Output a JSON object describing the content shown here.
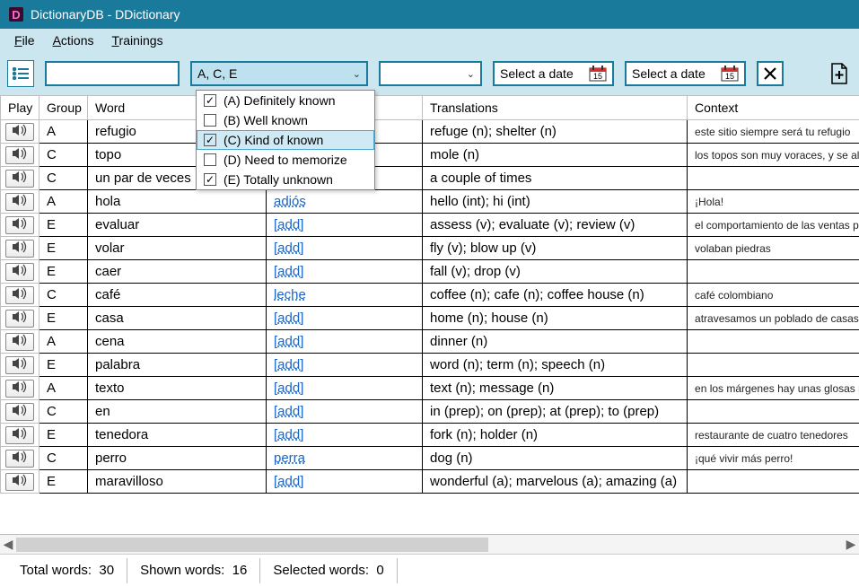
{
  "window": {
    "title": "DictionaryDB - DDictionary"
  },
  "menu": {
    "file": "File",
    "actions": "Actions",
    "trainings": "Trainings"
  },
  "toolbar": {
    "filter_value": "A, C, E",
    "date_placeholder": "Select a date"
  },
  "dropdown": {
    "items": [
      {
        "label": "(A) Definitely known",
        "checked": true,
        "hover": false
      },
      {
        "label": "(B) Well known",
        "checked": false,
        "hover": false
      },
      {
        "label": "(C) Kind of known",
        "checked": true,
        "hover": true
      },
      {
        "label": "(D) Need to memorize",
        "checked": false,
        "hover": false
      },
      {
        "label": "(E) Totally unknown",
        "checked": true,
        "hover": false
      }
    ]
  },
  "columns": {
    "play": "Play",
    "group": "Group",
    "word": "Word",
    "translations": "Translations",
    "context": "Context"
  },
  "rows": [
    {
      "group": "A",
      "word": "refugio",
      "opp": "",
      "trans": "refuge (n); shelter (n)",
      "ctx": "este sitio siempre será tu refugio"
    },
    {
      "group": "C",
      "word": "topo",
      "opp": "",
      "trans": "mole (n)",
      "ctx": "los topos son muy voraces, y se alim"
    },
    {
      "group": "C",
      "word": "un par de veces",
      "opp": "",
      "trans": "a couple of times",
      "ctx": ""
    },
    {
      "group": "A",
      "word": "hola",
      "opp": "adiós",
      "trans": "hello (int); hi (int)",
      "ctx": "¡Hola!"
    },
    {
      "group": "E",
      "word": "evaluar",
      "opp": "[add]",
      "trans": "assess (v); evaluate (v); review (v)",
      "ctx": "el comportamiento de las ventas pe"
    },
    {
      "group": "E",
      "word": "volar",
      "opp": "[add]",
      "trans": "fly (v); blow up (v)",
      "ctx": "volaban piedras"
    },
    {
      "group": "E",
      "word": "caer",
      "opp": "[add]",
      "trans": "fall (v); drop (v)",
      "ctx": ""
    },
    {
      "group": "C",
      "word": "café",
      "opp": "leche",
      "trans": "coffee (n); cafe (n); coffee house (n)",
      "ctx": "café colombiano"
    },
    {
      "group": "E",
      "word": "casa",
      "opp": "[add]",
      "trans": "home (n); house (n)",
      "ctx": "atravesamos un poblado de casas es"
    },
    {
      "group": "A",
      "word": "cena",
      "opp": "[add]",
      "trans": "dinner (n)",
      "ctx": ""
    },
    {
      "group": "E",
      "word": "palabra",
      "opp": "[add]",
      "trans": "word (n); term (n); speech (n)",
      "ctx": ""
    },
    {
      "group": "A",
      "word": "texto",
      "opp": "[add]",
      "trans": "text (n); message (n)",
      "ctx": "en los márgenes hay unas glosas pa"
    },
    {
      "group": "C",
      "word": "en",
      "opp": "[add]",
      "trans": "in (prep); on (prep); at (prep); to (prep)",
      "ctx": ""
    },
    {
      "group": "E",
      "word": "tenedora",
      "opp": "[add]",
      "trans": "fork (n); holder (n)",
      "ctx": "restaurante de cuatro tenedores"
    },
    {
      "group": "C",
      "word": "perro",
      "opp": "perra",
      "trans": "dog (n)",
      "ctx": "¡qué vivir más perro!"
    },
    {
      "group": "E",
      "word": "maravilloso",
      "opp": "[add]",
      "trans": "wonderful (a); marvelous (a); amazing (a)",
      "ctx": ""
    }
  ],
  "status": {
    "total_label": "Total words:",
    "total_value": "30",
    "shown_label": "Shown words:",
    "shown_value": "16",
    "selected_label": "Selected words:",
    "selected_value": "0"
  },
  "colors": {
    "accent": "#1a7a9c",
    "header_bg": "#cce6f0",
    "combo_selected_bg": "#bde1ef",
    "link": "#1a64c8"
  }
}
